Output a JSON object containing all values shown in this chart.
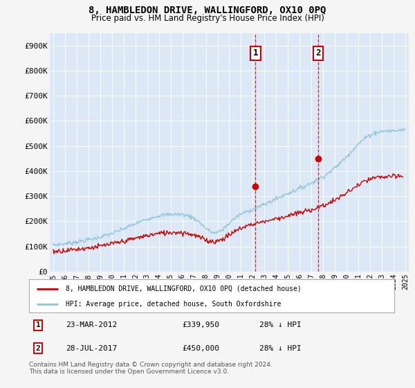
{
  "title": "8, HAMBLEDON DRIVE, WALLINGFORD, OX10 0PQ",
  "subtitle": "Price paid vs. HM Land Registry's House Price Index (HPI)",
  "hpi_color": "#92c5de",
  "price_color": "#cc0000",
  "background_color": "#f5f5f5",
  "plot_bg_color": "#dce8f5",
  "ylim": [
    0,
    950000
  ],
  "yticks": [
    0,
    100000,
    200000,
    300000,
    400000,
    500000,
    600000,
    700000,
    800000,
    900000
  ],
  "ytick_labels": [
    "£0",
    "£100K",
    "£200K",
    "£300K",
    "£400K",
    "£500K",
    "£600K",
    "£700K",
    "£800K",
    "£900K"
  ],
  "legend_label_price": "8, HAMBLEDON DRIVE, WALLINGFORD, OX10 0PQ (detached house)",
  "legend_label_hpi": "HPI: Average price, detached house, South Oxfordshire",
  "transaction1_date": "23-MAR-2012",
  "transaction1_price": "£339,950",
  "transaction1_hpi": "28% ↓ HPI",
  "transaction2_date": "28-JUL-2017",
  "transaction2_price": "£450,000",
  "transaction2_hpi": "28% ↓ HPI",
  "footer": "Contains HM Land Registry data © Crown copyright and database right 2024.\nThis data is licensed under the Open Government Licence v3.0.",
  "marker1_year": 2012.23,
  "marker1_value": 339950,
  "marker2_year": 2017.58,
  "marker2_value": 450000,
  "xlim_left": 1994.7,
  "xlim_right": 2025.3
}
